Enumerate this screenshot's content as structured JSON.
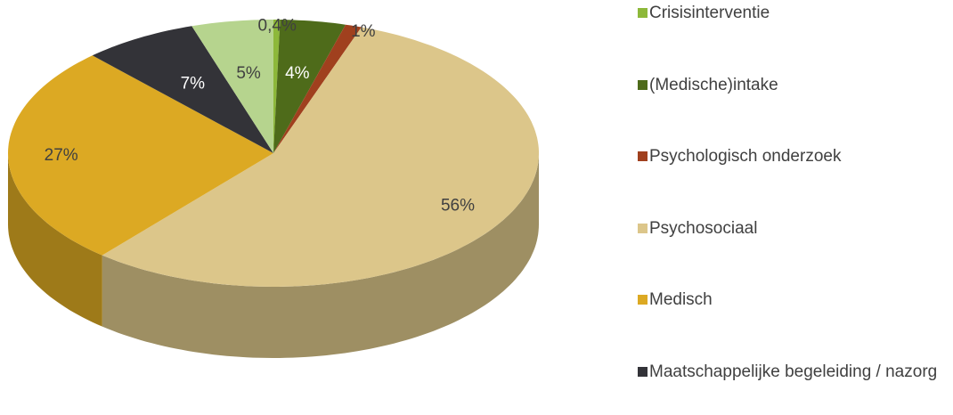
{
  "chart_data": {
    "type": "pie3d",
    "categories": [
      "Crisisinterventie",
      "(Medische)intake",
      "Psychologisch onderzoek",
      "Psychosociaal",
      "Medisch",
      "Maatschappelijke begeleiding / nazorg",
      null
    ],
    "values": [
      0.4,
      4,
      1,
      56,
      27,
      7,
      5
    ],
    "value_labels": [
      "0,4%",
      "4%",
      "1%",
      "56%",
      "27%",
      "7%",
      "5%"
    ],
    "colors": [
      "#8db83a",
      "#4e6b1a",
      "#a0401e",
      "#dcc68a",
      "#dca923",
      "#333338",
      "#b6d48e"
    ],
    "legend": "right"
  }
}
